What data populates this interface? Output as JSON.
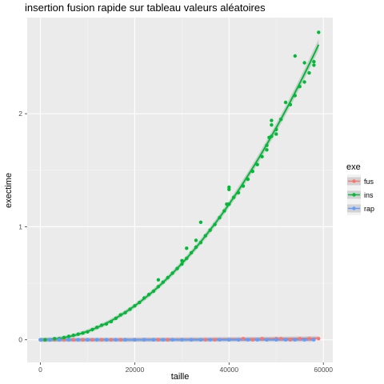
{
  "chart_data": {
    "type": "scatter",
    "title": "insertion fusion rapide sur tableau valeurs aléatoires",
    "xlabel": "taille",
    "ylabel": "exectime",
    "xlim": [
      -2800,
      62000
    ],
    "ylim": [
      -0.2,
      2.85
    ],
    "x_ticks": [
      0,
      20000,
      40000,
      60000
    ],
    "x_tick_labels": [
      "0",
      "20000",
      "40000",
      "60000"
    ],
    "y_ticks": [
      0,
      1,
      2
    ],
    "y_tick_labels": [
      "0",
      "1",
      "2"
    ],
    "grid": true,
    "smooth_lines": true,
    "legend": {
      "title": "exe",
      "position": "right",
      "entries": [
        "fus",
        "ins",
        "rap"
      ]
    },
    "series": [
      {
        "name": "fus",
        "color": "#F8766D",
        "fit": [
          0,
          0.004
        ],
        "points": [
          [
            0,
            0.0
          ],
          [
            1000,
            0.0
          ],
          [
            3000,
            0.0
          ],
          [
            5000,
            0.0
          ],
          [
            7000,
            0.0
          ],
          [
            9000,
            0.0
          ],
          [
            11000,
            0.0
          ],
          [
            13000,
            0.0
          ],
          [
            15000,
            0.0
          ],
          [
            17000,
            0.0
          ],
          [
            20000,
            0.0
          ],
          [
            22000,
            0.0
          ],
          [
            25000,
            0.0
          ],
          [
            27000,
            0.0
          ],
          [
            30000,
            0.0
          ],
          [
            32000,
            0.0
          ],
          [
            35000,
            0.0
          ],
          [
            37000,
            0.0
          ],
          [
            40000,
            0.0
          ],
          [
            42000,
            0.0
          ],
          [
            43000,
            0.01
          ],
          [
            45000,
            0.0
          ],
          [
            47000,
            0.01
          ],
          [
            48000,
            0.0
          ],
          [
            50000,
            0.01
          ],
          [
            51000,
            0.01
          ],
          [
            53000,
            0.0
          ],
          [
            55000,
            0.01
          ],
          [
            57000,
            0.01
          ],
          [
            59000,
            0.01
          ]
        ]
      },
      {
        "name": "ins",
        "color": "#00BA38",
        "fit": [
          0,
          0.75
        ],
        "points": [
          [
            0,
            0.0
          ],
          [
            1000,
            0.0
          ],
          [
            2000,
            0.0
          ],
          [
            3000,
            0.01
          ],
          [
            4000,
            0.01
          ],
          [
            5000,
            0.02
          ],
          [
            6000,
            0.03
          ],
          [
            7000,
            0.04
          ],
          [
            8000,
            0.05
          ],
          [
            9000,
            0.06
          ],
          [
            10000,
            0.07
          ],
          [
            11000,
            0.09
          ],
          [
            12000,
            0.11
          ],
          [
            13000,
            0.13
          ],
          [
            14000,
            0.14
          ],
          [
            15000,
            0.16
          ],
          [
            16000,
            0.19
          ],
          [
            17000,
            0.22
          ],
          [
            18000,
            0.24
          ],
          [
            19000,
            0.27
          ],
          [
            20000,
            0.3
          ],
          [
            21000,
            0.33
          ],
          [
            22000,
            0.37
          ],
          [
            23000,
            0.4
          ],
          [
            24000,
            0.43
          ],
          [
            25000,
            0.47
          ],
          [
            25000,
            0.53
          ],
          [
            26000,
            0.51
          ],
          [
            27000,
            0.55
          ],
          [
            28000,
            0.59
          ],
          [
            29000,
            0.63
          ],
          [
            30000,
            0.67
          ],
          [
            30000,
            0.7
          ],
          [
            31000,
            0.72
          ],
          [
            31000,
            0.81
          ],
          [
            32000,
            0.77
          ],
          [
            33000,
            0.82
          ],
          [
            33000,
            0.88
          ],
          [
            34000,
            0.86
          ],
          [
            34000,
            1.04
          ],
          [
            35000,
            0.92
          ],
          [
            36000,
            0.97
          ],
          [
            37000,
            1.02
          ],
          [
            38000,
            1.08
          ],
          [
            39000,
            1.14
          ],
          [
            39500,
            1.2
          ],
          [
            40000,
            1.2
          ],
          [
            40000,
            1.35
          ],
          [
            40000,
            1.33
          ],
          [
            41000,
            1.26
          ],
          [
            42000,
            1.3
          ],
          [
            43000,
            1.36
          ],
          [
            44000,
            1.42
          ],
          [
            45000,
            1.49
          ],
          [
            46000,
            1.55
          ],
          [
            47000,
            1.62
          ],
          [
            48000,
            1.68
          ],
          [
            48000,
            1.72
          ],
          [
            48500,
            1.79
          ],
          [
            49000,
            1.8
          ],
          [
            49000,
            1.9
          ],
          [
            49000,
            1.94
          ],
          [
            50000,
            1.82
          ],
          [
            50000,
            1.86
          ],
          [
            51000,
            1.95
          ],
          [
            52000,
            2.1
          ],
          [
            53000,
            2.08
          ],
          [
            54000,
            2.16
          ],
          [
            54000,
            2.51
          ],
          [
            55000,
            2.24
          ],
          [
            56000,
            2.28
          ],
          [
            56000,
            2.45
          ],
          [
            57000,
            2.36
          ],
          [
            58000,
            2.43
          ],
          [
            58000,
            2.46
          ],
          [
            59000,
            2.72
          ]
        ]
      },
      {
        "name": "rap",
        "color": "#619CFF",
        "fit": [
          0,
          0.0
        ],
        "points": [
          [
            0,
            0.0
          ],
          [
            2000,
            0.0
          ],
          [
            4000,
            0.0
          ],
          [
            6000,
            0.0
          ],
          [
            8000,
            0.0
          ],
          [
            10000,
            0.0
          ],
          [
            12000,
            0.0
          ],
          [
            14000,
            0.0
          ],
          [
            16000,
            0.0
          ],
          [
            18000,
            0.0
          ],
          [
            20000,
            0.0
          ],
          [
            22000,
            0.0
          ],
          [
            24000,
            0.0
          ],
          [
            26000,
            0.0
          ],
          [
            28000,
            0.0
          ],
          [
            30000,
            0.0
          ],
          [
            32000,
            0.0
          ],
          [
            34000,
            0.0
          ],
          [
            36000,
            0.0
          ],
          [
            38000,
            0.0
          ],
          [
            40000,
            0.0
          ],
          [
            42000,
            0.0
          ],
          [
            44000,
            0.0
          ],
          [
            46000,
            0.0
          ],
          [
            48000,
            0.0
          ],
          [
            50000,
            0.0
          ],
          [
            52000,
            0.0
          ],
          [
            54000,
            0.0
          ],
          [
            56000,
            0.0
          ],
          [
            58000,
            0.0
          ]
        ]
      }
    ]
  }
}
